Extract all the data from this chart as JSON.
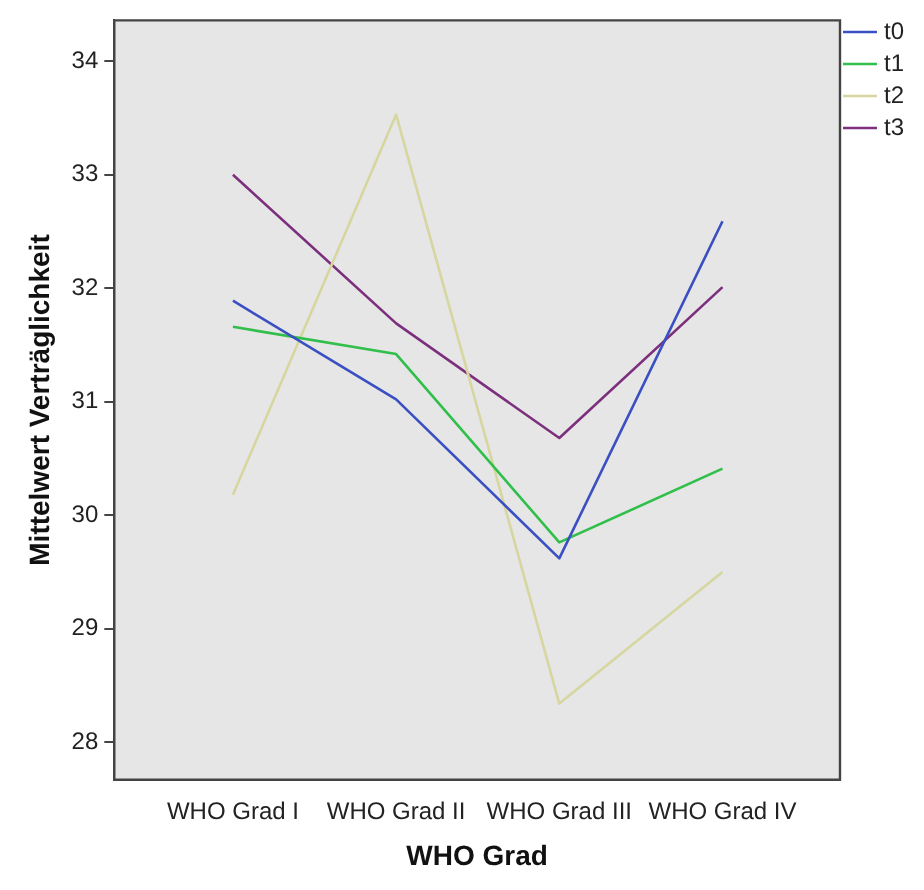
{
  "chart_data": {
    "type": "line",
    "xlabel": "WHO Grad",
    "ylabel": "Mittelwert Verträglichkeit",
    "categories": [
      "WHO Grad I",
      "WHO Grad II",
      "WHO Grad III",
      "WHO Grad IV"
    ],
    "series": [
      {
        "name": "t0",
        "color": "#3a4fc2",
        "values": [
          31.89,
          31.02,
          29.62,
          32.59
        ]
      },
      {
        "name": "t1",
        "color": "#2fbf4a",
        "values": [
          31.66,
          31.42,
          29.76,
          30.41
        ]
      },
      {
        "name": "t2",
        "color": "#d6d6a0",
        "values": [
          30.18,
          33.53,
          28.34,
          29.5
        ]
      },
      {
        "name": "t3",
        "color": "#7c2f7c",
        "values": [
          33.0,
          31.69,
          30.68,
          32.01
        ]
      }
    ],
    "ylim": [
      27.67,
      34.36
    ],
    "yticks": [
      28,
      29,
      30,
      31,
      32,
      33,
      34
    ],
    "grid": false,
    "legend": "top right",
    "marker": "none",
    "line_style": "solid"
  }
}
